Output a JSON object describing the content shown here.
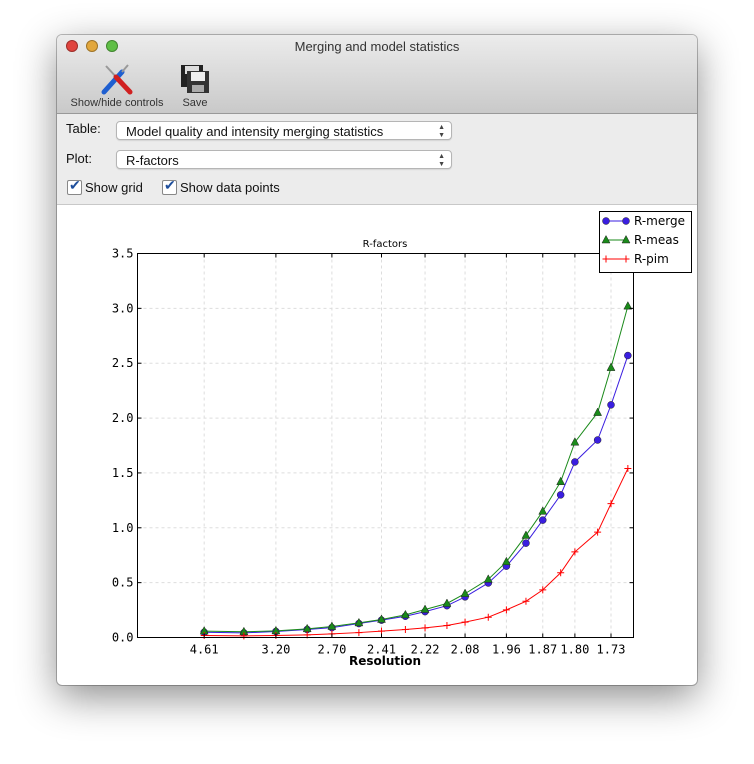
{
  "window": {
    "title": "Merging and model statistics"
  },
  "toolbar": {
    "show_hide": "Show/hide controls",
    "save": "Save"
  },
  "controls": {
    "table_label": "Table:",
    "table_value": "Model quality and intensity merging statistics",
    "plot_label": "Plot:",
    "plot_value": "R-factors",
    "show_grid": "Show grid",
    "show_points": "Show data points"
  },
  "chart_data": {
    "type": "line",
    "title": "R-factors",
    "xlabel": "Resolution",
    "ylabel": "",
    "x_scale": "inverse-square",
    "ylim": [
      0,
      3.5
    ],
    "yticks": [
      "0.0",
      "0.5",
      "1.0",
      "1.5",
      "2.0",
      "2.5",
      "3.0",
      "3.5"
    ],
    "xticks": [
      "4.61",
      "3.20",
      "2.70",
      "2.41",
      "2.22",
      "2.08",
      "1.96",
      "1.87",
      "1.80",
      "1.73"
    ],
    "grid": true,
    "legend": "top-right",
    "x": [
      4.61,
      3.65,
      3.2,
      2.89,
      2.7,
      2.53,
      2.41,
      2.3,
      2.22,
      2.14,
      2.08,
      2.01,
      1.96,
      1.91,
      1.87,
      1.83,
      1.8,
      1.755,
      1.73,
      1.7
    ],
    "series": [
      {
        "name": "R-merge",
        "color": "#3a1ee0",
        "marker": "circle",
        "values": [
          0.048,
          0.042,
          0.055,
          0.073,
          0.09,
          0.127,
          0.158,
          0.194,
          0.236,
          0.29,
          0.37,
          0.497,
          0.65,
          0.86,
          1.07,
          1.3,
          1.6,
          1.8,
          2.12,
          2.57
        ]
      },
      {
        "name": "R-meas",
        "color": "#1a8a1a",
        "marker": "triangle",
        "values": [
          0.058,
          0.052,
          0.06,
          0.079,
          0.1,
          0.133,
          0.164,
          0.206,
          0.255,
          0.31,
          0.4,
          0.53,
          0.69,
          0.93,
          1.15,
          1.42,
          1.78,
          2.05,
          2.46,
          3.02
        ]
      },
      {
        "name": "R-pim",
        "color": "#ff0000",
        "marker": "plus",
        "values": [
          0.018,
          0.015,
          0.018,
          0.024,
          0.033,
          0.045,
          0.058,
          0.073,
          0.088,
          0.109,
          0.14,
          0.185,
          0.252,
          0.33,
          0.434,
          0.59,
          0.78,
          0.96,
          1.22,
          1.54
        ]
      }
    ]
  }
}
